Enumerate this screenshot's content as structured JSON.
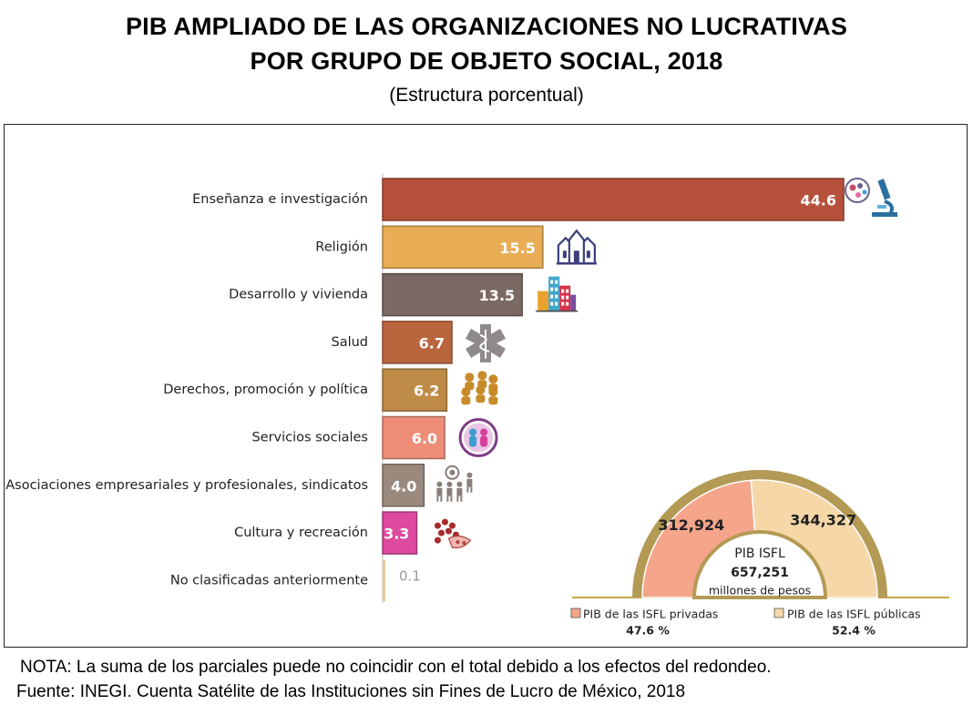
{
  "header": {
    "title_line1": "PIB AMPLIADO DE LAS ORGANIZACIONES NO LUCRATIVAS",
    "title_line2": "POR GRUPO DE OBJETO SOCIAL, 2018",
    "subtitle": "(Estructura porcentual)"
  },
  "chart_data": [
    {
      "type": "bar",
      "orientation": "horizontal",
      "title": "PIB AMPLIADO DE LAS ORGANIZACIONES NO LUCRATIVAS POR GRUPO DE OBJETO SOCIAL, 2018",
      "subtitle": "(Estructura porcentual)",
      "categories": [
        "Enseñanza e investigación",
        "Religión",
        "Desarrollo y vivienda",
        "Salud",
        "Derechos, promoción y política",
        "Servicios sociales",
        "Asociaciones empresariales y profesionales, sindicatos",
        "Cultura y recreación",
        "No clasificadas anteriormente"
      ],
      "values": [
        44.6,
        15.5,
        13.5,
        6.7,
        6.2,
        6.0,
        4.0,
        3.3,
        0.1
      ],
      "value_labels": [
        "44.6",
        "15.5",
        "13.5",
        "6.7",
        "6.2",
        "6.0",
        "4.0",
        "3.3",
        "0.1"
      ],
      "colors": [
        "#b5503a",
        "#e8ad55",
        "#7b6963",
        "#b9653e",
        "#bf8c47",
        "#ee8e78",
        "#9a8a7e",
        "#dd4aa0",
        "#e8c9a0"
      ],
      "icons": [
        "microscope-icon",
        "church-icon",
        "buildings-icon",
        "caduceus-icon",
        "people-group-icon",
        "family-icon",
        "workers-icon",
        "culture-icon",
        ""
      ],
      "xlim": [
        0,
        44.6
      ],
      "grid": false,
      "legend": "none"
    },
    {
      "type": "pie",
      "shape": "semicircle",
      "center_title": "PIB ISFL",
      "center_value": "657,251",
      "center_unit": "millones de pesos",
      "slices": [
        {
          "label": "PIB de las ISFL privadas",
          "value": 312924,
          "value_label": "312,924",
          "percent": 47.6,
          "percent_label": "47.6 %",
          "color": "#f4a58a"
        },
        {
          "label": "PIB de las ISFL públicas",
          "value": 344327,
          "value_label": "344,327",
          "percent": 52.4,
          "percent_label": "52.4 %",
          "color": "#f6d7a8"
        }
      ],
      "ring_color": "#b39a55",
      "legend": "bottom"
    }
  ],
  "notes": {
    "nota": "NOTA: La suma de los parciales puede no coincidir con el total debido a los efectos del redondeo.",
    "fuente": "Fuente: INEGI. Cuenta Satélite de las Instituciones sin Fines de Lucro de México, 2018"
  }
}
